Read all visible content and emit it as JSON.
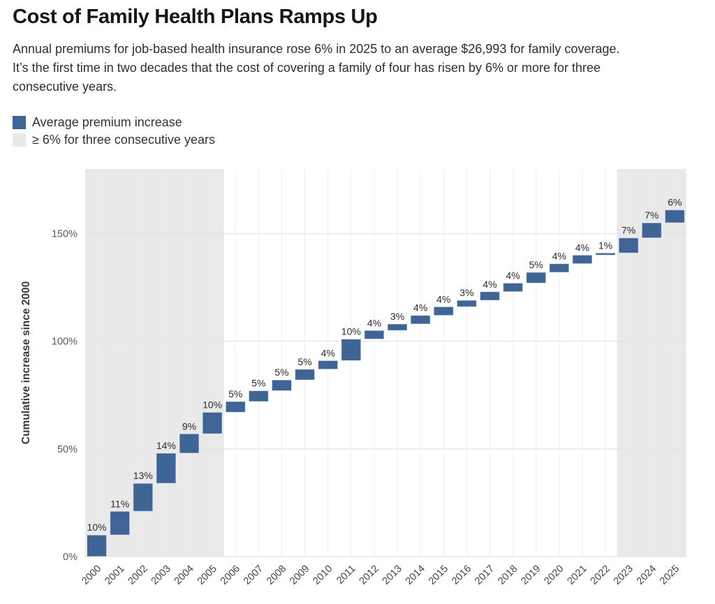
{
  "header": {
    "title": "Cost of Family Health Plans Ramps Up",
    "subtitle_lines": [
      "Annual premiums for job-based health insurance rose 6% in 2025 to an average $26,993 for family coverage.",
      "It’s the first time in two decades that the cost of covering a family of four has risen by 6% or more for three",
      "consecutive years."
    ]
  },
  "legend": {
    "items": [
      {
        "label": "Average premium increase",
        "swatch_color": "#3e6595",
        "represents": "annual-increase-bar"
      },
      {
        "label": "≥ 6% for three consecutive years",
        "swatch_color": "#e9e9e9",
        "represents": "highlight-band"
      }
    ]
  },
  "chart_data": {
    "type": "bar",
    "variant": "waterfall",
    "title": "Cost of Family Health Plans Ramps Up",
    "xlabel": "",
    "ylabel": "Cumulative increase since 2000",
    "categories": [
      "2000",
      "2001",
      "2002",
      "2003",
      "2004",
      "2005",
      "2006",
      "2007",
      "2008",
      "2009",
      "2010",
      "2011",
      "2012",
      "2013",
      "2014",
      "2015",
      "2016",
      "2017",
      "2018",
      "2019",
      "2020",
      "2021",
      "2022",
      "2023",
      "2024",
      "2025"
    ],
    "values": [
      10,
      11,
      13,
      14,
      9,
      10,
      5,
      5,
      5,
      5,
      4,
      10,
      4,
      3,
      4,
      4,
      3,
      4,
      4,
      5,
      4,
      4,
      1,
      7,
      7,
      6
    ],
    "bar_labels": [
      "10%",
      "11%",
      "13%",
      "14%",
      "9%",
      "10%",
      "5%",
      "5%",
      "5%",
      "5%",
      "4%",
      "10%",
      "4%",
      "3%",
      "4%",
      "4%",
      "3%",
      "4%",
      "4%",
      "5%",
      "4%",
      "4%",
      "1%",
      "7%",
      "7%",
      "6%"
    ],
    "cumulative_end": [
      10,
      21,
      34,
      48,
      57,
      67,
      72,
      77,
      82,
      87,
      91,
      101,
      105,
      108,
      112,
      116,
      119,
      123,
      127,
      132,
      136,
      140,
      141,
      148,
      155,
      161
    ],
    "ytick_values": [
      0,
      50,
      100,
      150
    ],
    "ytick_labels": [
      "0%",
      "50%",
      "100%",
      "150%"
    ],
    "ylim": [
      0,
      180
    ],
    "grid": true,
    "legend_position": "top-left",
    "highlight_bands": [
      {
        "start": "2000",
        "end": "2005"
      },
      {
        "start": "2023",
        "end": "2025"
      }
    ],
    "colors": {
      "bar": "#3e6595",
      "bar_stroke": "rgba(255,255,255,0.55)",
      "band": "#e9e9e9",
      "grid_h": "#e2e2e2",
      "grid_v": "#ededed",
      "ytick_text": "#5a5a5a",
      "xtick_text": "#454545",
      "bar_label_text": "#2b2b2b",
      "axis_title_text": "#3a3a3a"
    }
  }
}
